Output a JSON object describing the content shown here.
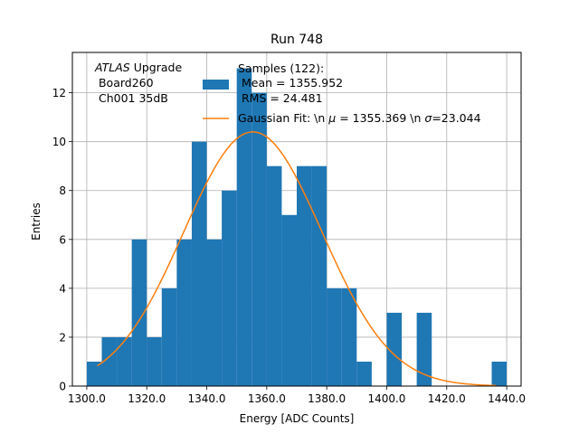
{
  "chart_data": {
    "type": "bar",
    "title": "Run 748",
    "xlabel": "Energy [ADC Counts]",
    "ylabel": "Entries",
    "xlim": [
      1295.2,
      1444.8
    ],
    "ylim": [
      0,
      13.65
    ],
    "xticks": [
      1300,
      1320,
      1340,
      1360,
      1380,
      1400,
      1420,
      1440
    ],
    "xtick_labels": [
      "1300.0",
      "1320.0",
      "1340.0",
      "1360.0",
      "1380.0",
      "1400.0",
      "1420.0",
      "1440.0"
    ],
    "yticks": [
      0,
      2,
      4,
      6,
      8,
      10,
      12
    ],
    "ytick_labels": [
      "0",
      "2",
      "4",
      "6",
      "8",
      "10",
      "12"
    ],
    "grid": true,
    "bin_edges": [
      1300.0,
      1305.0,
      1310.0,
      1315.0,
      1320.0,
      1325.0,
      1330.0,
      1335.0,
      1340.0,
      1345.0,
      1350.0,
      1355.0,
      1360.0,
      1365.0,
      1370.0,
      1375.0,
      1380.0,
      1385.0,
      1390.0,
      1395.0,
      1400.0,
      1405.0,
      1410.0,
      1415.0,
      1420.0,
      1425.0,
      1430.0,
      1435.0,
      1440.0
    ],
    "counts": [
      1,
      2,
      2,
      6,
      2,
      4,
      6,
      10,
      6,
      8,
      13,
      12,
      9,
      7,
      9,
      9,
      4,
      4,
      1,
      0,
      3,
      0,
      3,
      0,
      0,
      0,
      0,
      1
    ],
    "fit_curve": {
      "name": "Gaussian Fit: \\n $\\mu$ = 1355.369 \\n $\\sigma$=23.044",
      "mean": 1355.369,
      "sigma": 23.044,
      "amplitude": 10.4,
      "x_range": [
        1303.5,
        1436.5
      ]
    },
    "series": [
      {
        "name": "Samples (122):\n Mean = 1355.952\n RMS = 24.481",
        "color": "#1f77b4"
      },
      {
        "name": "Gaussian Fit",
        "color": "#ff7f0e"
      }
    ],
    "legend": {
      "placement": "top-center",
      "hist_lines": [
        "Samples (122):",
        " Mean = 1355.952",
        " RMS = 24.481"
      ],
      "fit_label_prefix": "Gaussian Fit: \\n ",
      "fit_mu_symbol": "μ",
      "fit_mu_value": " = 1355.369 \\n ",
      "fit_sigma_symbol": "σ",
      "fit_sigma_value": "=23.044"
    },
    "annotation": {
      "italic": "ATLAS",
      "line1_rest": " Upgrade",
      "line2": " Board260",
      "line3": " Ch001 35dB"
    },
    "colors": {
      "hist": "#1f77b4",
      "fit": "#ff7f0e",
      "grid": "#b0b0b0"
    }
  }
}
